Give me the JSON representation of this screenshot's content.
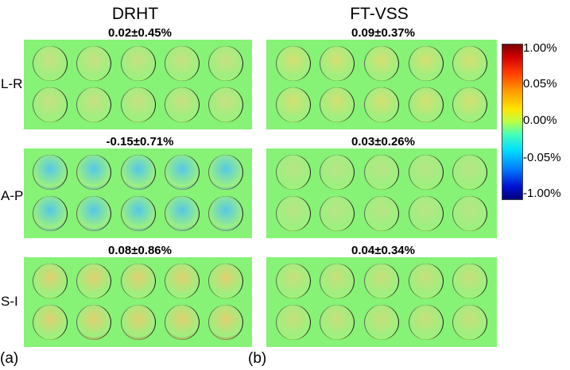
{
  "columns": [
    {
      "title": "DRHT",
      "panels": [
        {
          "stat": "0.02±0.45%",
          "tint": "#c8e080"
        },
        {
          "stat": "-0.15±0.71%",
          "tint": "#55c8e8"
        },
        {
          "stat": "0.08±0.86%",
          "tint": "#e0d070"
        }
      ]
    },
    {
      "title": "FT-VSS",
      "panels": [
        {
          "stat": "0.09±0.37%",
          "tint": "#d6df72"
        },
        {
          "stat": "0.03±0.26%",
          "tint": "#b9e585"
        },
        {
          "stat": "0.04±0.34%",
          "tint": "#c8df7a"
        }
      ]
    }
  ],
  "rows": [
    "L-R",
    "A-P",
    "S-I"
  ],
  "colorbar": {
    "ticks": [
      "1.00%",
      "0.05%",
      "0.00%",
      "-0.05%",
      "-1.00%"
    ]
  },
  "figure_labels": [
    "(a)",
    "(b)"
  ]
}
